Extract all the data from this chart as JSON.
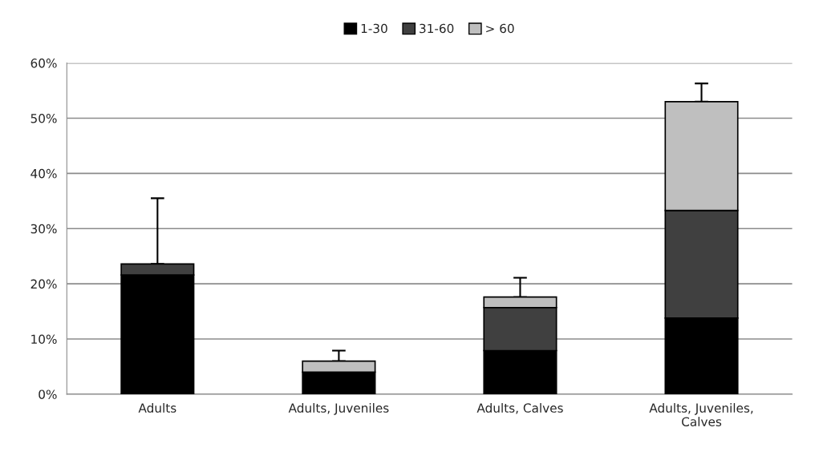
{
  "chart_data": {
    "type": "bar",
    "stacked": true,
    "categories": [
      "Adults",
      "Adults, Juveniles",
      "Adults, Calves",
      "Adults, Juveniles,\nCalves"
    ],
    "series": [
      {
        "name": "1-30",
        "color": "#000000",
        "values": [
          21.6,
          4.0,
          7.9,
          13.8
        ]
      },
      {
        "name": "31-60",
        "color": "#404040",
        "values": [
          2.0,
          null,
          7.8,
          19.5
        ],
        "errors": [
          [
            23.6,
            35.5
          ],
          null,
          null,
          null
        ]
      },
      {
        "name": "> 60",
        "color": "#bfbfbf",
        "values": [
          null,
          2.0,
          1.9,
          19.7
        ],
        "errors": [
          null,
          [
            6.0,
            7.9
          ],
          [
            17.6,
            21.1
          ],
          [
            53.0,
            56.3
          ]
        ]
      }
    ],
    "ylim": [
      0,
      60
    ],
    "yticks": [
      {
        "value": 0,
        "label": "0%"
      },
      {
        "value": 10,
        "label": "10%"
      },
      {
        "value": 20,
        "label": "20%"
      },
      {
        "value": 30,
        "label": "30%"
      },
      {
        "value": 40,
        "label": "40%"
      },
      {
        "value": 50,
        "label": "50%"
      },
      {
        "value": 60,
        "label": "60%"
      }
    ],
    "grid": "y",
    "legend": "top"
  }
}
